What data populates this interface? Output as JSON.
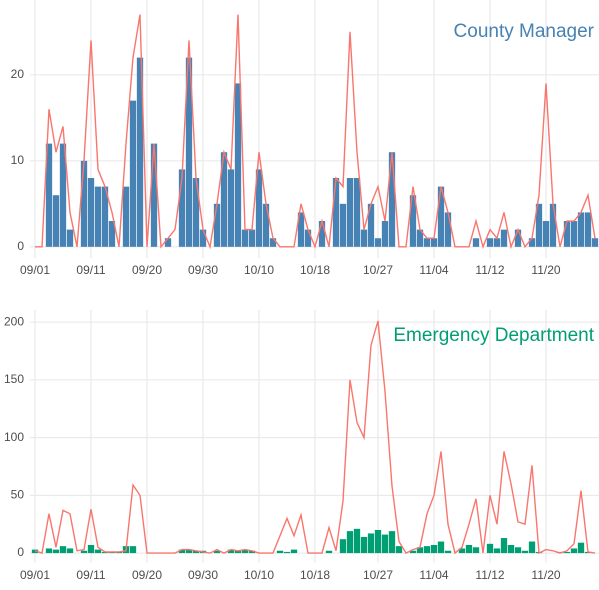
{
  "chart_data": [
    {
      "type": "bar",
      "title": "County Manager",
      "categories": [
        "09/01",
        null,
        null,
        null,
        null,
        null,
        null,
        null,
        "09/11",
        null,
        null,
        null,
        null,
        null,
        null,
        null,
        "09/20",
        null,
        null,
        null,
        null,
        null,
        null,
        null,
        "09/30",
        null,
        null,
        null,
        null,
        null,
        null,
        null,
        "10/10",
        null,
        null,
        null,
        null,
        null,
        null,
        null,
        "10/18",
        null,
        null,
        null,
        null,
        null,
        null,
        null,
        null,
        "10/27",
        null,
        null,
        null,
        null,
        null,
        null,
        null,
        "11/04",
        null,
        null,
        null,
        null,
        null,
        null,
        null,
        "11/12",
        null,
        null,
        null,
        null,
        null,
        null,
        null,
        "11/20",
        null,
        null,
        null,
        null,
        null,
        null,
        null
      ],
      "series": [
        {
          "type": "bar",
          "color": "#4682b4",
          "values": [
            0,
            0,
            12,
            6,
            12,
            2,
            0,
            10,
            8,
            7,
            7,
            3,
            0,
            7,
            17,
            22,
            0,
            12,
            0,
            1,
            0,
            9,
            22,
            8,
            2,
            0,
            5,
            11,
            9,
            19,
            2,
            2,
            9,
            5,
            1,
            0,
            0,
            0,
            4,
            2,
            0,
            3,
            0,
            8,
            5,
            8,
            8,
            2,
            5,
            1,
            3,
            11,
            0,
            0,
            6,
            2,
            1,
            1,
            7,
            4,
            0,
            0,
            0,
            1,
            0,
            1,
            1,
            2,
            0,
            2,
            0,
            1,
            5,
            3,
            5,
            0,
            3,
            3,
            4,
            4,
            1
          ]
        },
        {
          "type": "line",
          "color": "#f8766d",
          "values": [
            0,
            0,
            16,
            11,
            14,
            4,
            0,
            10,
            24,
            9,
            7,
            4,
            0,
            12,
            22,
            27,
            0,
            12,
            0,
            1,
            2,
            8,
            24,
            8,
            2,
            0,
            5,
            11,
            9,
            27,
            2,
            2,
            11,
            5,
            1,
            0,
            0,
            0,
            5,
            2,
            0,
            3,
            0,
            8,
            7,
            25,
            11,
            2,
            5,
            7,
            3,
            11,
            0,
            0,
            7,
            2,
            1,
            1,
            7,
            4,
            0,
            0,
            0,
            3,
            0,
            2,
            1,
            4,
            0,
            2,
            0,
            1,
            6,
            19,
            5,
            0,
            3,
            3,
            4,
            6,
            1
          ]
        }
      ],
      "ylim": [
        -1.3,
        28.7
      ],
      "yticks": [
        0,
        10,
        20
      ],
      "grid": true
    },
    {
      "type": "bar",
      "title": "Emergency Department",
      "categories": [
        "09/01",
        null,
        null,
        null,
        null,
        null,
        null,
        null,
        "09/11",
        null,
        null,
        null,
        null,
        null,
        null,
        null,
        "09/20",
        null,
        null,
        null,
        null,
        null,
        null,
        null,
        "09/30",
        null,
        null,
        null,
        null,
        null,
        null,
        null,
        "10/10",
        null,
        null,
        null,
        null,
        null,
        null,
        null,
        "10/18",
        null,
        null,
        null,
        null,
        null,
        null,
        null,
        null,
        "10/27",
        null,
        null,
        null,
        null,
        null,
        null,
        null,
        "11/04",
        null,
        null,
        null,
        null,
        null,
        null,
        null,
        "11/12",
        null,
        null,
        null,
        null,
        null,
        null,
        null,
        "11/20",
        null,
        null,
        null,
        null,
        null,
        null,
        null
      ],
      "series": [
        {
          "type": "bar",
          "color": "#009e73",
          "values": [
            3,
            0,
            4,
            3,
            6,
            4,
            0,
            2,
            7,
            3,
            1,
            1,
            1,
            6,
            6,
            0,
            0,
            0,
            0,
            0,
            0,
            3,
            3,
            2,
            2,
            0,
            2,
            0,
            3,
            2,
            3,
            2,
            0,
            0,
            0,
            2,
            1,
            3,
            0,
            0,
            0,
            0,
            2,
            0,
            12,
            19,
            21,
            14,
            17,
            20,
            16,
            19,
            6,
            0,
            2,
            5,
            6,
            7,
            10,
            2,
            0,
            4,
            7,
            5,
            0,
            8,
            4,
            13,
            7,
            5,
            2,
            10,
            1,
            0,
            0,
            1,
            1,
            4,
            9,
            1,
            0
          ]
        },
        {
          "type": "line",
          "color": "#f8766d",
          "values": [
            2,
            0,
            34,
            5,
            37,
            34,
            2,
            3,
            38,
            5,
            1,
            1,
            1,
            2,
            59,
            50,
            0,
            0,
            0,
            0,
            0,
            3,
            3,
            2,
            1,
            0,
            3,
            0,
            3,
            2,
            3,
            2,
            0,
            0,
            0,
            15,
            30,
            15,
            33,
            0,
            0,
            0,
            22,
            2,
            45,
            150,
            113,
            100,
            180,
            201,
            140,
            58,
            10,
            0,
            3,
            5,
            34,
            50,
            88,
            25,
            0,
            5,
            25,
            47,
            0,
            50,
            25,
            88,
            60,
            27,
            25,
            76,
            0,
            3,
            2,
            0,
            2,
            8,
            54,
            1,
            0
          ]
        }
      ],
      "ylim": [
        -8.6,
        210.5
      ],
      "yticks": [
        0,
        50,
        100,
        150,
        200
      ],
      "grid": true
    }
  ]
}
